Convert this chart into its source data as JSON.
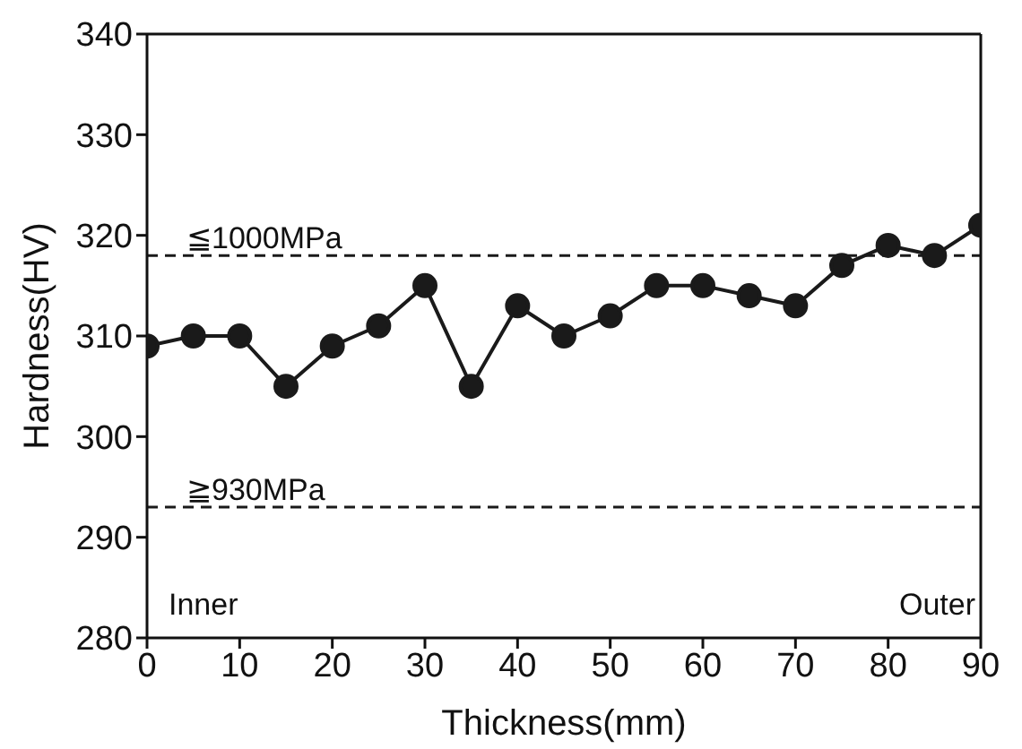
{
  "chart_data": {
    "type": "line",
    "xlabel": "Thickness(mm)",
    "ylabel": "Hardness(HV)",
    "x": [
      0,
      5,
      10,
      15,
      20,
      25,
      30,
      35,
      40,
      45,
      50,
      55,
      60,
      65,
      70,
      75,
      80,
      85,
      90
    ],
    "series": [
      {
        "color": "#1a1a1a",
        "values": [
          309,
          310,
          310,
          305,
          309,
          311,
          315,
          305,
          313,
          310,
          312,
          315,
          315,
          314,
          313,
          317,
          319,
          318,
          321
        ]
      }
    ],
    "xlim": [
      0,
      90
    ],
    "xticks": [
      0,
      10,
      20,
      30,
      40,
      50,
      60,
      70,
      80,
      90
    ],
    "ylim": [
      280,
      340
    ],
    "yticks": [
      280,
      290,
      300,
      310,
      320,
      330,
      340
    ],
    "ref_lines": [
      {
        "axis": "y",
        "value": 318,
        "label": "≦1000MPa",
        "line_style": "dashed",
        "color": "#1a1a1a"
      },
      {
        "axis": "y",
        "value": 293,
        "label": "≧930MPa",
        "line_style": "dashed",
        "color": "#1a1a1a"
      }
    ],
    "annotations": [
      "Inner",
      "Outer"
    ],
    "marker": "circle",
    "line_style": "solid",
    "grid": false,
    "legend": false
  }
}
